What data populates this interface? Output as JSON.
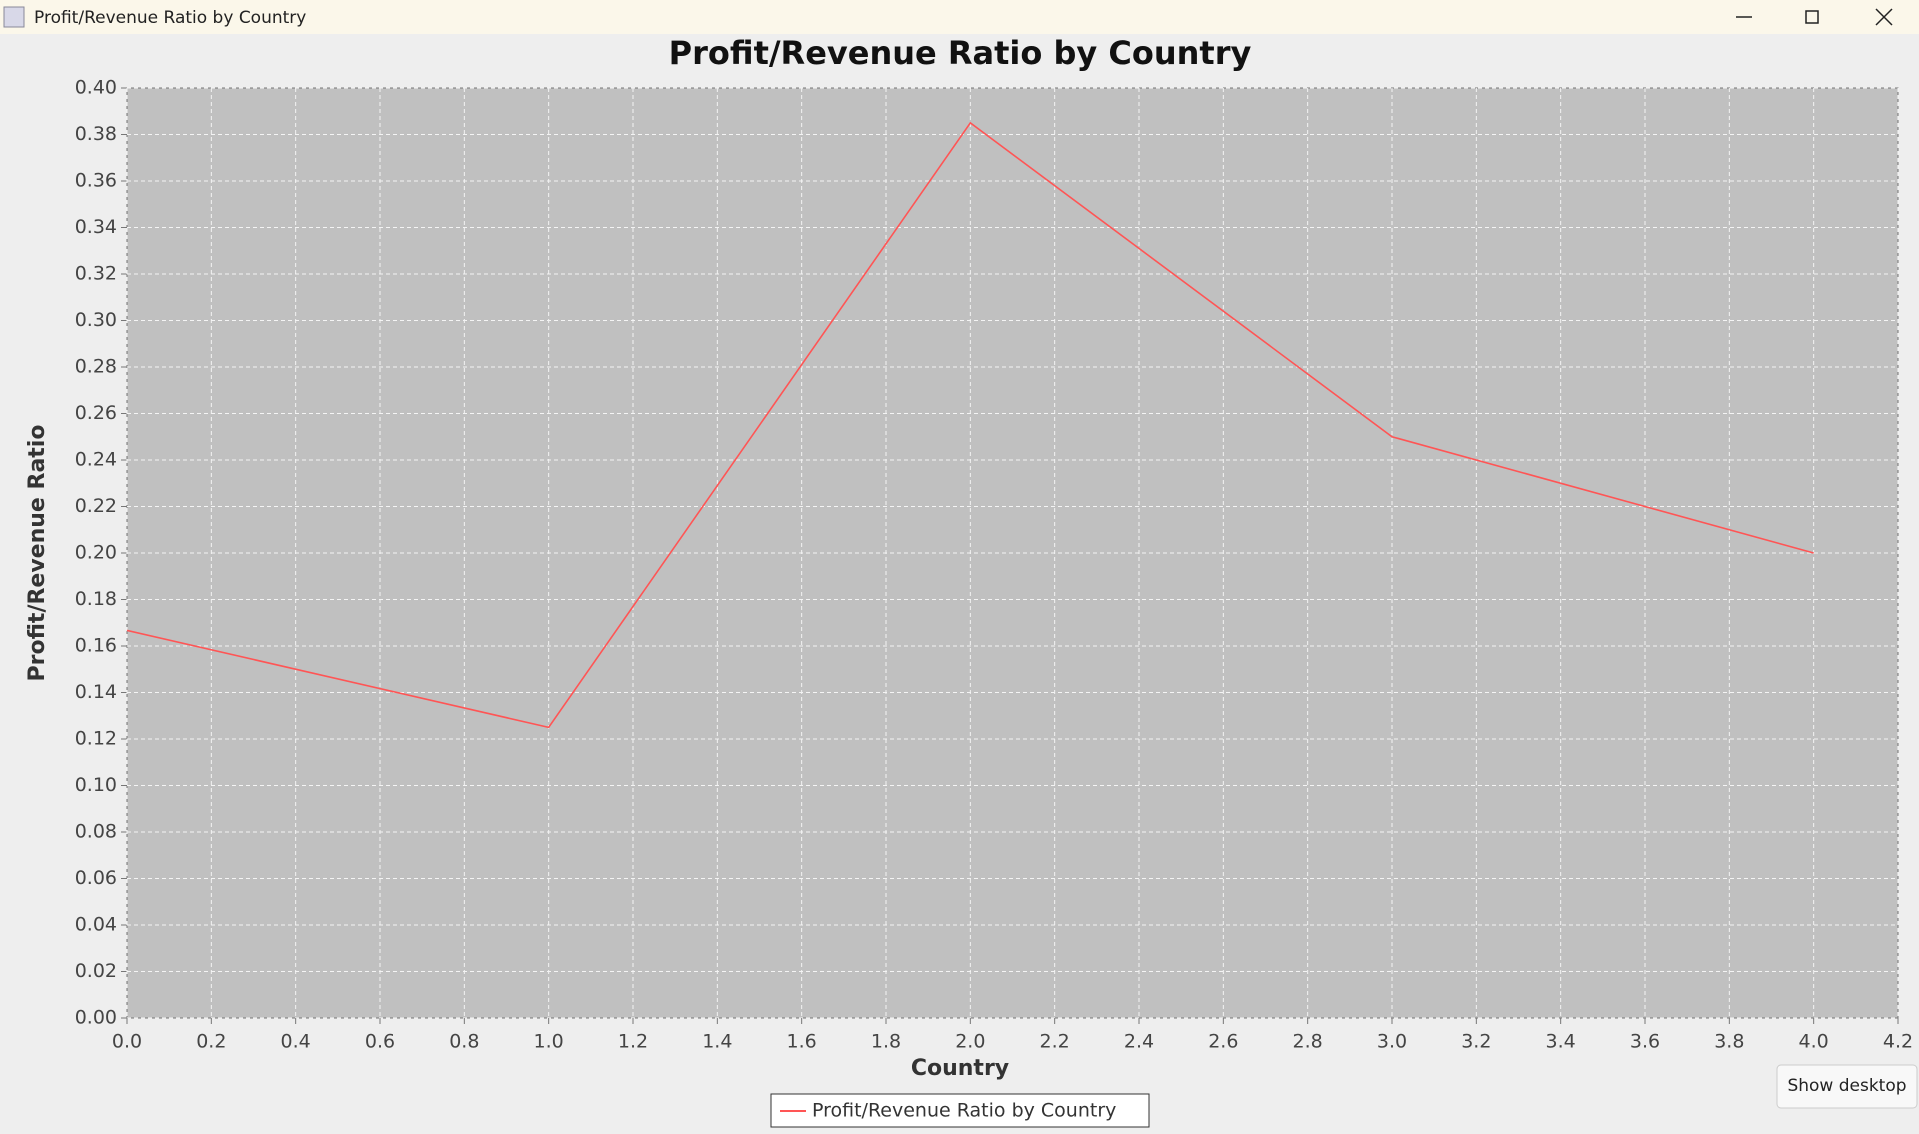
{
  "window": {
    "title": "Profit/Revenue Ratio by Country"
  },
  "tooltip": "Show desktop",
  "chart_data": {
    "type": "line",
    "title": "Profit/Revenue Ratio by Country",
    "x_label": "Country",
    "y_label": "Profit/Revenue Ratio",
    "x": [
      0,
      1,
      2,
      3,
      4
    ],
    "series": [
      {
        "name": "Profit/Revenue Ratio by Country",
        "color": "#ff5555",
        "values": [
          0.1667,
          0.125,
          0.385,
          0.25,
          0.2
        ]
      }
    ],
    "xlim": [
      0,
      4.2
    ],
    "xticks": [
      {
        "value": 0,
        "label": "0.0"
      },
      0.2,
      0.4,
      0.6,
      0.8,
      {
        "value": 1,
        "label": "1.0"
      },
      1.2,
      1.4,
      1.6,
      1.8,
      {
        "value": 2,
        "label": "2.0"
      },
      2.2,
      2.4,
      2.6,
      2.8,
      {
        "value": 3,
        "label": "3.0"
      },
      3.2,
      3.4,
      3.6,
      3.8,
      {
        "value": 4,
        "label": "4.0"
      },
      4.2
    ],
    "ylim": [
      0,
      0.4
    ],
    "yticks": [
      {
        "value": 0,
        "label": "0.00"
      },
      0.02,
      0.04,
      0.06,
      0.08,
      {
        "value": 0.1,
        "label": "0.10"
      },
      0.12,
      0.14,
      0.16,
      0.18,
      {
        "value": 0.2,
        "label": "0.20"
      },
      0.22,
      0.24,
      0.26,
      0.28,
      {
        "value": 0.3,
        "label": "0.30"
      },
      0.32,
      0.34,
      0.36,
      0.38,
      {
        "value": 0.4,
        "label": "0.40"
      }
    ],
    "grid": true,
    "legend": "bottom"
  }
}
